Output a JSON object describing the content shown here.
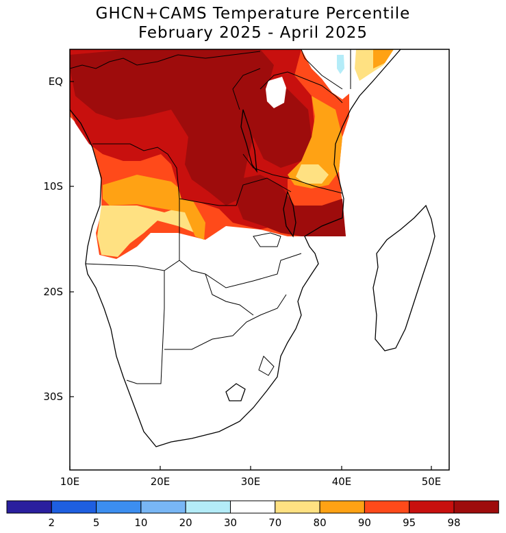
{
  "title": {
    "line1": "GHCN+CAMS Temperature Percentile",
    "line2": "February 2025 - April 2025"
  },
  "axes": {
    "x_ticks": [
      "10E",
      "20E",
      "30E",
      "40E",
      "50E"
    ],
    "y_ticks": [
      "EQ",
      "10S",
      "20S",
      "30S"
    ]
  },
  "colorbar": {
    "labels": [
      "2",
      "5",
      "10",
      "20",
      "30",
      "70",
      "80",
      "90",
      "95",
      "98"
    ],
    "colors": [
      "#2a1f9e",
      "#1e5fe0",
      "#3c8ef0",
      "#78b6f5",
      "#b4ecf8",
      "#ffffff",
      "#ffe182",
      "#ffa214",
      "#ff4a1a",
      "#c8100e",
      "#9e0c0c"
    ]
  },
  "shading_colors": {
    "p98plus": "#9e0c0c",
    "p95_98": "#c8100e",
    "p90_95": "#ff4a1a",
    "p80_90": "#ffa214",
    "p70_80": "#ffe182",
    "p20_30": "#b4ecf8"
  }
}
